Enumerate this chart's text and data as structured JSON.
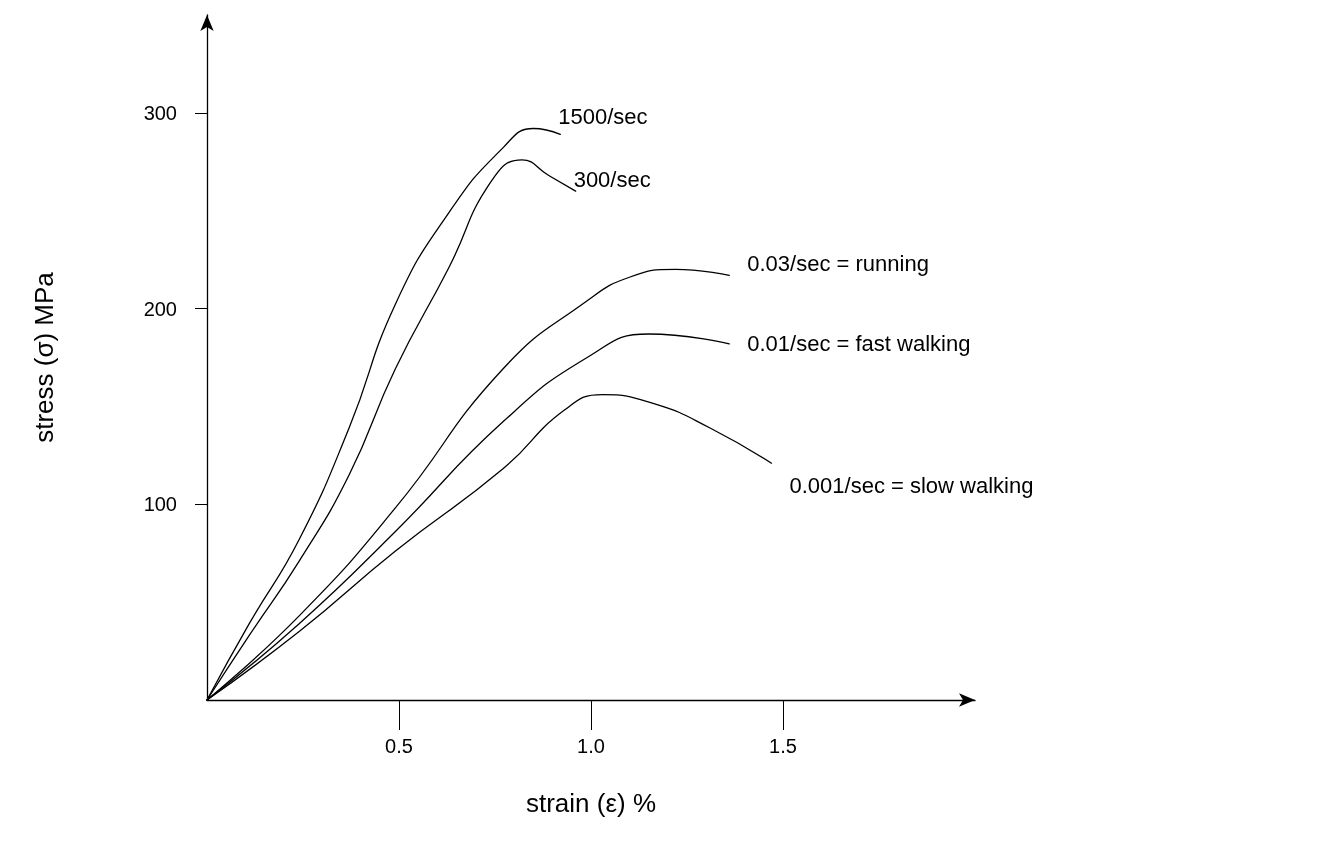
{
  "chart_data": {
    "type": "line",
    "xlabel": "strain (ε) %",
    "ylabel": "stress (σ) MPa",
    "xlim": [
      0,
      2
    ],
    "ylim": [
      0,
      350
    ],
    "xticks": [
      {
        "value": 0.5,
        "label": "0.5"
      },
      {
        "value": 1,
        "label": "1.0"
      },
      {
        "value": 1.5,
        "label": "1.5"
      }
    ],
    "yticks": [
      100,
      200,
      300
    ],
    "grid": false,
    "legend": false,
    "marker": "none",
    "line_style": "solid",
    "series": [
      {
        "name": "1500/sec",
        "color": "#000000",
        "x": [
          0,
          0.11,
          0.24,
          0.37,
          0.49,
          0.63,
          0.77,
          0.85,
          0.92
        ],
        "values": [
          0,
          39,
          82,
          139,
          202,
          249,
          282,
          292,
          289
        ]
      },
      {
        "name": "300/sec",
        "color": "#000000",
        "x": [
          0,
          0.11,
          0.24,
          0.37,
          0.49,
          0.63,
          0.74,
          0.82,
          0.89,
          0.96
        ],
        "values": [
          0,
          33,
          71,
          115,
          169,
          221,
          265,
          276,
          268,
          260
        ]
      },
      {
        "name": "0.03/sec = running",
        "color": "#000000",
        "x": [
          0,
          0.24,
          0.49,
          0.77,
          0.99,
          1.1,
          1.22,
          1.36
        ],
        "values": [
          0,
          43,
          98,
          169,
          204,
          216,
          220,
          217
        ]
      },
      {
        "name": "0.01/sec = fast walking",
        "color": "#000000",
        "x": [
          0,
          0.24,
          0.49,
          0.77,
          0.99,
          1.15,
          1.36
        ],
        "values": [
          0,
          39,
          86,
          142,
          175,
          187,
          182
        ]
      },
      {
        "name": "0.001/sec = slow walking",
        "color": "#000000",
        "x": [
          0,
          0.24,
          0.49,
          0.77,
          0.93,
          1.03,
          1.17,
          1.31,
          1.47
        ],
        "values": [
          0,
          35,
          76,
          118,
          148,
          156,
          151,
          139,
          121
        ]
      }
    ]
  }
}
